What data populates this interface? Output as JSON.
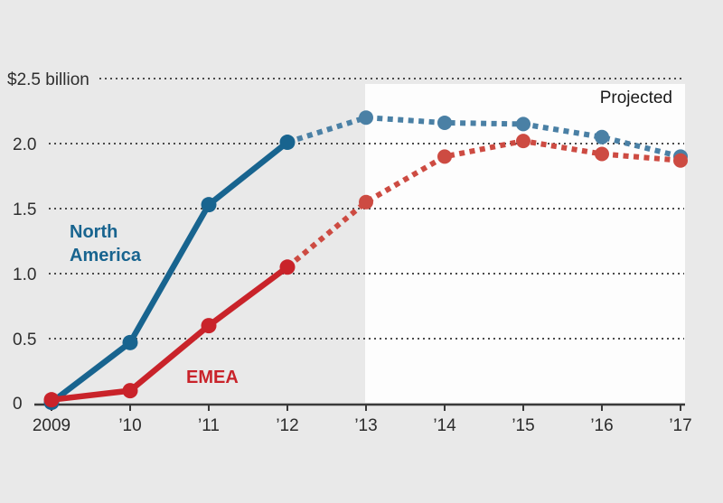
{
  "chart_data": {
    "type": "line",
    "title": "",
    "xlabel": "",
    "ylabel": "$ billion",
    "ylim": [
      0,
      2.5
    ],
    "grid": "horizontal-dotted",
    "legend_position": "inline-labels",
    "x": [
      2009,
      2010,
      2011,
      2012,
      2013,
      2014,
      2015,
      2016,
      2017
    ],
    "x_tick_labels": [
      "2009",
      "’10",
      "’11",
      "’12",
      "’13",
      "’14",
      "’15",
      "’16",
      "’17"
    ],
    "y_ticks": [
      {
        "label": "$2.5 billion",
        "value": 2.5
      },
      {
        "label": "2.0",
        "value": 2.0
      },
      {
        "label": "1.5",
        "value": 1.5
      },
      {
        "label": "1.0",
        "value": 1.0
      },
      {
        "label": "0.5",
        "value": 0.5
      },
      {
        "label": "0",
        "value": 0.0
      }
    ],
    "series": [
      {
        "name": "North America",
        "label_lines": [
          "North",
          "America"
        ],
        "color": "#18648f",
        "projected_color": "#4a80a5",
        "values": [
          0.01,
          0.47,
          1.53,
          2.01,
          2.2,
          2.16,
          2.15,
          2.05,
          1.9
        ]
      },
      {
        "name": "EMEA",
        "label_lines": [
          "EMEA"
        ],
        "color": "#c9232a",
        "projected_color": "#cd4b42",
        "values": [
          0.03,
          0.1,
          0.6,
          1.05,
          1.55,
          1.9,
          2.02,
          1.92,
          1.87
        ]
      }
    ],
    "projected": {
      "label": "Projected",
      "dashed_from_year": 2012,
      "region_from_year": 2013
    }
  },
  "colors": {
    "background": "#e9e9e9",
    "projected_region": "#fdfdfd",
    "grid": "#4b4b4b",
    "axis": "#3a3a3a",
    "text": "#2e2e2e"
  }
}
